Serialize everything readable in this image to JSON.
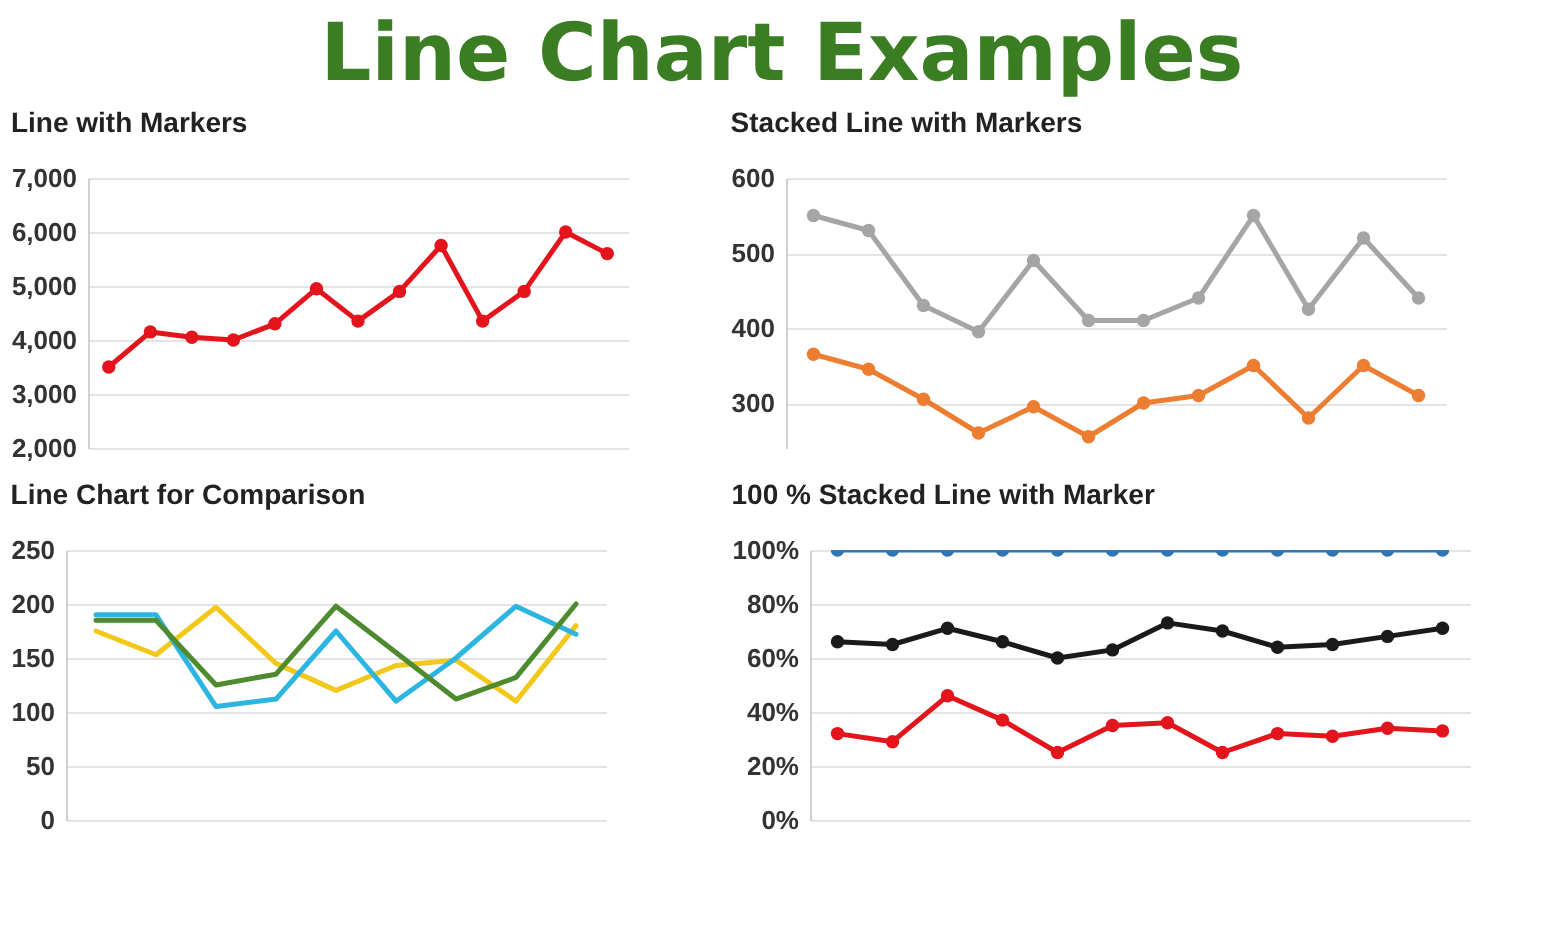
{
  "chart_data": [
    {
      "type": "line",
      "title": "Line with Markers",
      "annotations": [
        "Line Chart Examples"
      ],
      "categories": [
        null,
        null,
        null,
        null,
        null,
        null,
        null,
        null,
        null,
        null,
        null,
        null,
        null
      ],
      "series": [
        {
          "color": "#e3141c",
          "values": [
            3500,
            4150,
            4050,
            4000,
            4300,
            4950,
            4350,
            4900,
            5750,
            4350,
            4900,
            6000,
            5600
          ]
        }
      ],
      "ylim": [
        2000,
        7000
      ],
      "yticks": [
        {
          "value": 2000,
          "label": "2,000"
        },
        {
          "value": 3000,
          "label": "3,000"
        },
        {
          "value": 4000,
          "label": "4,000"
        },
        {
          "value": 5000,
          "label": "5,000"
        },
        {
          "value": 6000,
          "label": "6,000"
        },
        {
          "value": 7000,
          "label": "7,000"
        }
      ],
      "grid": "y",
      "tick_labels": "y",
      "marker": "circle"
    },
    {
      "type": "line",
      "title": "Stacked Line with Markers",
      "categories": [
        null,
        null,
        null,
        null,
        null,
        null,
        null,
        null,
        null,
        null,
        null,
        null
      ],
      "series": [
        {
          "color": "#a5a5a5",
          "values": [
            550,
            530,
            430,
            395,
            490,
            410,
            410,
            440,
            550,
            425,
            520,
            440
          ]
        },
        {
          "color": "#ed7d31",
          "values": [
            365,
            345,
            305,
            260,
            295,
            255,
            300,
            310,
            350,
            280,
            350,
            310
          ]
        }
      ],
      "ylim": [
        240,
        600
      ],
      "yticks": [
        300,
        400,
        500,
        600
      ],
      "grid": "y",
      "tick_labels": "y",
      "marker": "circle"
    },
    {
      "type": "line",
      "title": "Line Chart for Comparison",
      "categories": [
        null,
        null,
        null,
        null,
        null,
        null,
        null,
        null,
        null
      ],
      "series": [
        {
          "color": "#f2c81a",
          "values": [
            175,
            153,
            197,
            145,
            120,
            143,
            148,
            110,
            180
          ]
        },
        {
          "color": "#2bb5e0",
          "values": [
            190,
            190,
            105,
            112,
            175,
            110,
            150,
            198,
            172
          ]
        },
        {
          "color": "#4e8a2e",
          "values": [
            185,
            185,
            125,
            135,
            198,
            155,
            112,
            132,
            200
          ]
        }
      ],
      "ylim": [
        0,
        250
      ],
      "yticks": [
        0,
        50,
        100,
        150,
        200,
        250
      ],
      "grid": "y",
      "tick_labels": "y"
    },
    {
      "type": "line",
      "title": "100 % Stacked Line with Marker",
      "categories": [
        null,
        null,
        null,
        null,
        null,
        null,
        null,
        null,
        null,
        null,
        null,
        null
      ],
      "series": [
        {
          "color": "#2e75b6",
          "values": [
            100,
            100,
            100,
            100,
            100,
            100,
            100,
            100,
            100,
            100,
            100,
            100
          ]
        },
        {
          "color": "#1a1a1a",
          "values": [
            66,
            65,
            71,
            66,
            60,
            63,
            73,
            70,
            64,
            65,
            68,
            71
          ]
        },
        {
          "color": "#e3141c",
          "values": [
            32,
            29,
            46,
            37,
            25,
            35,
            36,
            25,
            32,
            31,
            34,
            33
          ]
        }
      ],
      "ylim": [
        0,
        100
      ],
      "yticks": [
        {
          "value": 0,
          "label": "0%"
        },
        {
          "value": 20,
          "label": "20%"
        },
        {
          "value": 40,
          "label": "40%"
        },
        {
          "value": 60,
          "label": "60%"
        },
        {
          "value": 80,
          "label": "80%"
        },
        {
          "value": 100,
          "label": "100%"
        }
      ],
      "grid": "y",
      "tick_labels": "y",
      "marker": "circle"
    }
  ]
}
